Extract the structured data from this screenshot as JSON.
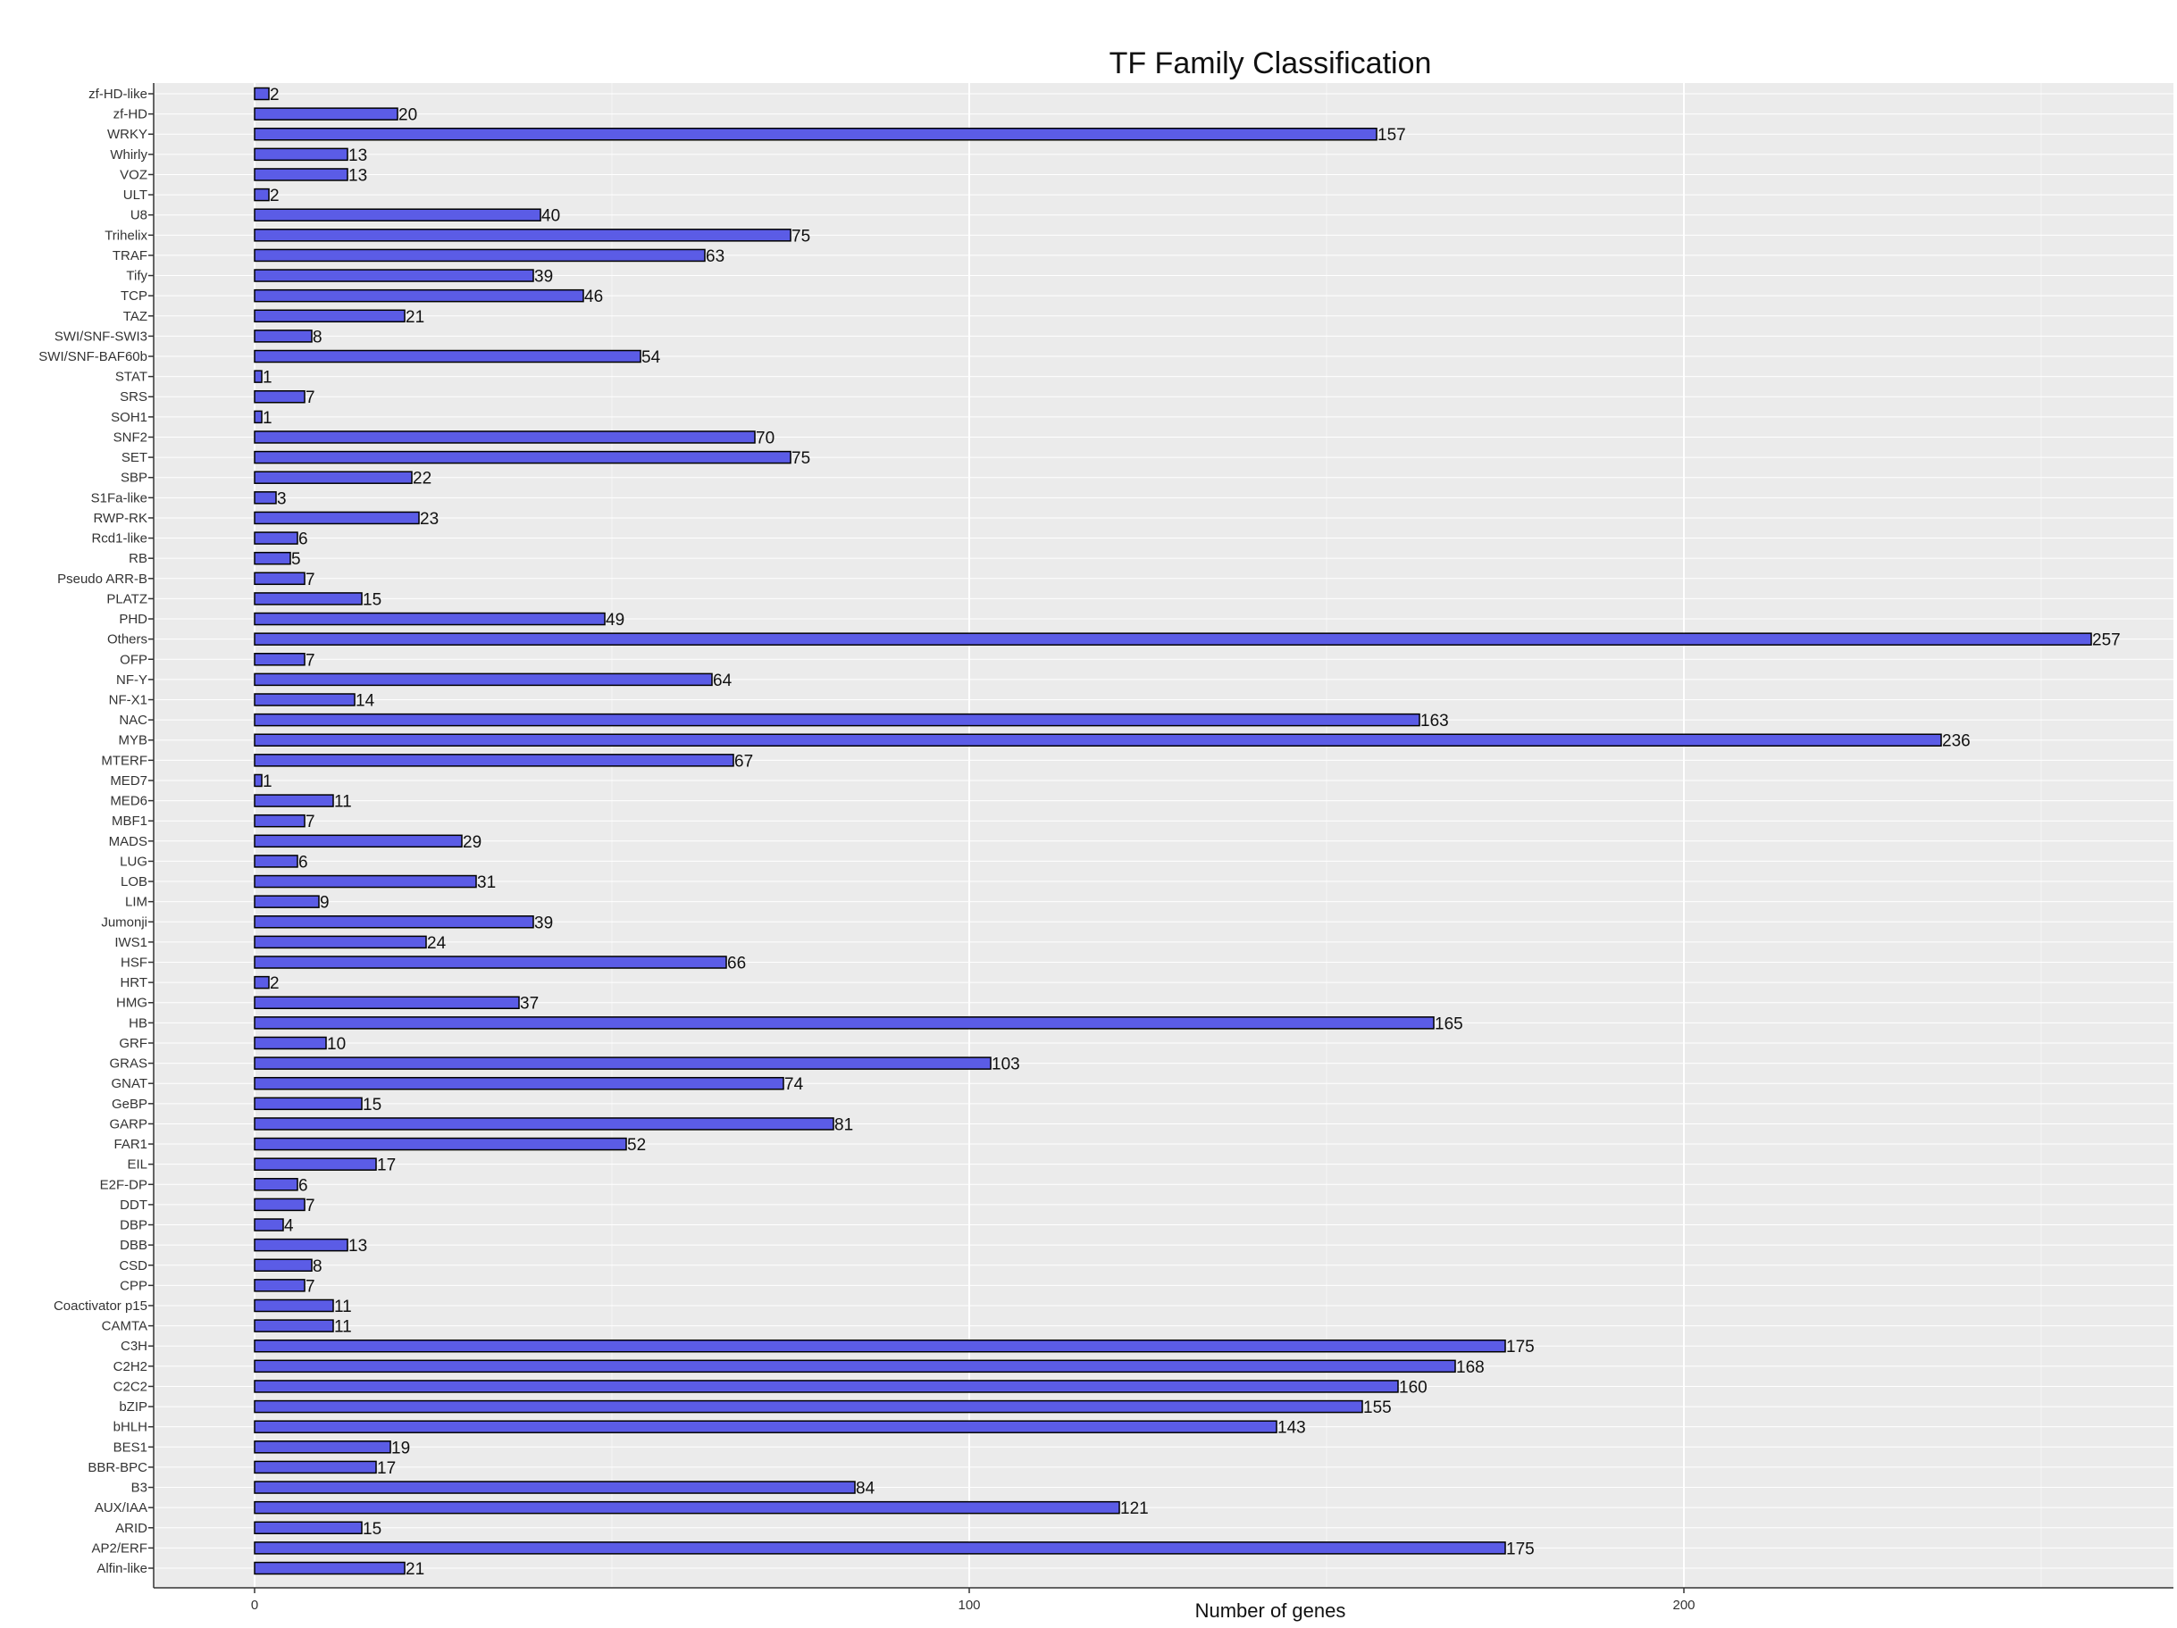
{
  "chart_data": {
    "type": "bar",
    "orientation": "horizontal",
    "title": "TF Family Classification",
    "xlabel": "Number of genes",
    "ylabel": "",
    "xlim": [
      0,
      264
    ],
    "xticks": [
      0,
      100,
      200
    ],
    "grid": true,
    "legend": "none",
    "bar_color": "#5b5ce6",
    "bar_edge_color": "#000000",
    "panel_color": "#ebebeb",
    "categories": [
      "zf-HD-like",
      "zf-HD",
      "WRKY",
      "Whirly",
      "VOZ",
      "ULT",
      "U8",
      "Trihelix",
      "TRAF",
      "Tify",
      "TCP",
      "TAZ",
      "SWI/SNF-SWI3",
      "SWI/SNF-BAF60b",
      "STAT",
      "SRS",
      "SOH1",
      "SNF2",
      "SET",
      "SBP",
      "S1Fa-like",
      "RWP-RK",
      "Rcd1-like",
      "RB",
      "Pseudo ARR-B",
      "PLATZ",
      "PHD",
      "Others",
      "OFP",
      "NF-Y",
      "NF-X1",
      "NAC",
      "MYB",
      "MTERF",
      "MED7",
      "MED6",
      "MBF1",
      "MADS",
      "LUG",
      "LOB",
      "LIM",
      "Jumonji",
      "IWS1",
      "HSF",
      "HRT",
      "HMG",
      "HB",
      "GRF",
      "GRAS",
      "GNAT",
      "GeBP",
      "GARP",
      "FAR1",
      "EIL",
      "E2F-DP",
      "DDT",
      "DBP",
      "DBB",
      "CSD",
      "CPP",
      "Coactivator p15",
      "CAMTA",
      "C3H",
      "C2H2",
      "C2C2",
      "bZIP",
      "bHLH",
      "BES1",
      "BBR-BPC",
      "B3",
      "AUX/IAA",
      "ARID",
      "AP2/ERF",
      "Alfin-like"
    ],
    "values": [
      2,
      20,
      157,
      13,
      13,
      2,
      40,
      75,
      63,
      39,
      46,
      21,
      8,
      54,
      1,
      7,
      1,
      70,
      75,
      22,
      3,
      23,
      6,
      5,
      7,
      15,
      49,
      257,
      7,
      64,
      14,
      163,
      236,
      67,
      1,
      11,
      7,
      29,
      6,
      31,
      9,
      39,
      24,
      66,
      2,
      37,
      165,
      10,
      103,
      74,
      15,
      81,
      52,
      17,
      6,
      7,
      4,
      13,
      8,
      7,
      11,
      11,
      175,
      168,
      160,
      155,
      143,
      19,
      17,
      84,
      121,
      15,
      175,
      21
    ]
  }
}
